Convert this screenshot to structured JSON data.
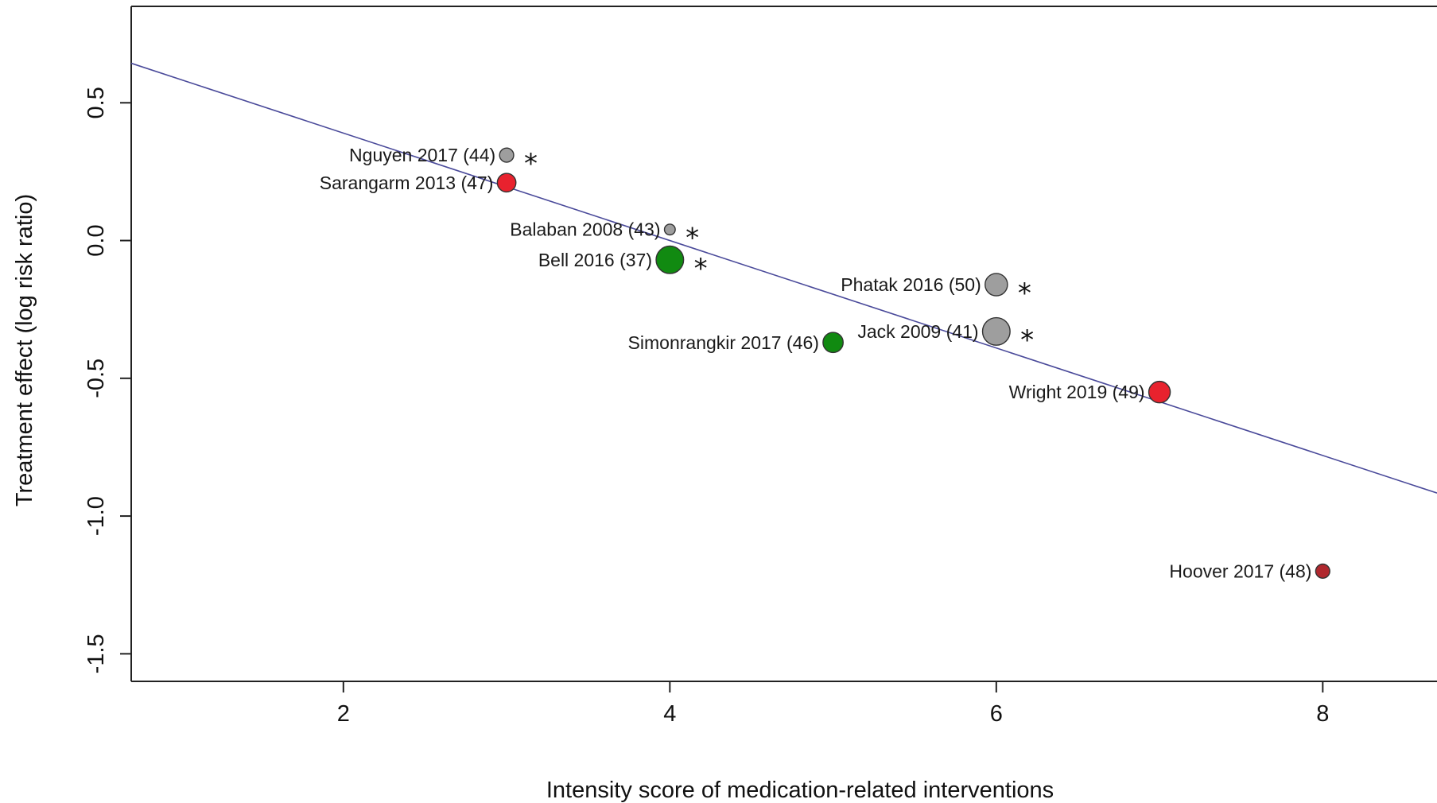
{
  "chart_data": {
    "type": "scatter",
    "title": "",
    "xlabel": "Intensity score of medication-related interventions",
    "ylabel": "Treatment effect (log risk ratio)",
    "xlim": [
      0.7,
      8.7
    ],
    "ylim": [
      -1.6,
      0.85
    ],
    "x_ticks": [
      2,
      4,
      6,
      8
    ],
    "x_tick_labels": [
      "2",
      "4",
      "6",
      "8"
    ],
    "y_ticks": [
      -1.5,
      -1.0,
      -0.5,
      0.0,
      0.5
    ],
    "y_tick_labels": [
      "-1.5",
      "-1.0",
      "-0.5",
      "0.0",
      "0.5"
    ],
    "grid": false,
    "regression_line": {
      "intercept": 0.78,
      "slope": -0.195,
      "color": "#4a4a9a"
    },
    "colors": {
      "red": "#e8222e",
      "green": "#118a11",
      "gray": "#9e9e9e",
      "darkred": "#b0282e"
    },
    "points": [
      {
        "label": "Nguyen 2017 (44)",
        "x": 3,
        "y": 0.31,
        "size": 0.35,
        "color": "gray",
        "star": true
      },
      {
        "label": "Sarangarm 2013 (47)",
        "x": 3,
        "y": 0.21,
        "size": 0.55,
        "color": "red",
        "star": false
      },
      {
        "label": "Balaban 2008 (43)",
        "x": 4,
        "y": 0.04,
        "size": 0.2,
        "color": "gray",
        "star": true
      },
      {
        "label": "Bell 2016 (37)",
        "x": 4,
        "y": -0.07,
        "size": 0.95,
        "color": "green",
        "star": true
      },
      {
        "label": "Phatak 2016 (50)",
        "x": 6,
        "y": -0.16,
        "size": 0.72,
        "color": "gray",
        "star": true
      },
      {
        "label": "Jack 2009 (41)",
        "x": 6,
        "y": -0.33,
        "size": 0.95,
        "color": "gray",
        "star": true
      },
      {
        "label": "Simonrangkir 2017 (46)",
        "x": 5,
        "y": -0.37,
        "size": 0.62,
        "color": "green",
        "star": false
      },
      {
        "label": "Wright 2019 (49)",
        "x": 7,
        "y": -0.55,
        "size": 0.68,
        "color": "red",
        "star": false
      },
      {
        "label": "Hoover 2017 (48)",
        "x": 8,
        "y": -1.2,
        "size": 0.35,
        "color": "darkred",
        "star": false
      }
    ],
    "star_symbol": "*"
  }
}
